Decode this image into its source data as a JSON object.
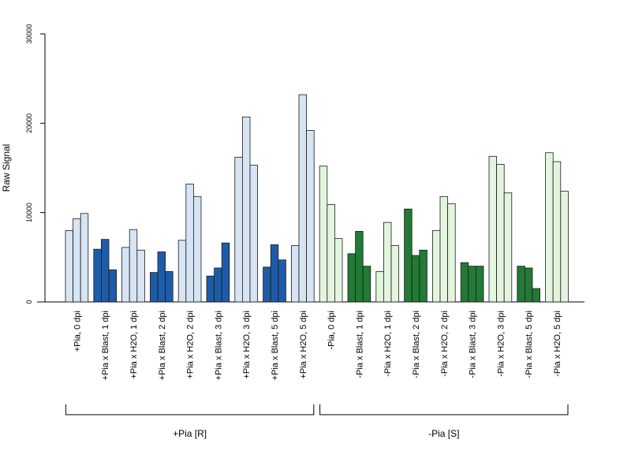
{
  "chart_data": {
    "type": "bar",
    "ylabel": "Raw Signal",
    "ylim": [
      0,
      30000
    ],
    "yticks": [
      "0",
      "10000",
      "20000",
      "30000"
    ],
    "grid": false,
    "legend": "none",
    "colors": {
      "plus_light": "#d6e4f3",
      "plus_dark": "#1f5ca8",
      "minus_light": "#e3f5df",
      "minus_dark": "#227a35"
    },
    "categories": [
      {
        "label": "+Pia, 0 dpi",
        "color": "plus_light",
        "values": [
          8000,
          9300,
          9900
        ]
      },
      {
        "label": "+Pia x Blast, 1 dpi",
        "color": "plus_dark",
        "values": [
          5900,
          7000,
          3600
        ]
      },
      {
        "label": "+Pia x H2O, 1 dpi",
        "color": "plus_light",
        "values": [
          6100,
          8100,
          5800
        ]
      },
      {
        "label": "+Pia x Blast, 2 dpi",
        "color": "plus_dark",
        "values": [
          3300,
          5600,
          3400
        ]
      },
      {
        "label": "+Pia x H2O, 2 dpi",
        "color": "plus_light",
        "values": [
          6900,
          13200,
          11800
        ]
      },
      {
        "label": "+Pia x Blast, 3 dpi",
        "color": "plus_dark",
        "values": [
          2900,
          3800,
          6600
        ]
      },
      {
        "label": "+Pia x H2O, 3 dpi",
        "color": "plus_light",
        "values": [
          16200,
          20700,
          15300
        ]
      },
      {
        "label": "+Pia x Blast, 5 dpi",
        "color": "plus_dark",
        "values": [
          3900,
          6400,
          4700
        ]
      },
      {
        "label": "+Pia x H2O, 5 dpi",
        "color": "plus_light",
        "values": [
          6300,
          23200,
          19200
        ]
      },
      {
        "label": "-Pia, 0 dpi",
        "color": "minus_light",
        "values": [
          15200,
          10900,
          7100
        ]
      },
      {
        "label": "-Pia x Blast, 1 dpi",
        "color": "minus_dark",
        "values": [
          5400,
          7900,
          4000
        ]
      },
      {
        "label": "-Pia x H2O, 1 dpi",
        "color": "minus_light",
        "values": [
          3400,
          8900,
          6300
        ]
      },
      {
        "label": "-Pia x Blast, 2 dpi",
        "color": "minus_dark",
        "values": [
          10400,
          5200,
          5800
        ]
      },
      {
        "label": "-Pia x H2O, 2 dpi",
        "color": "minus_light",
        "values": [
          8000,
          11800,
          11000
        ]
      },
      {
        "label": "-Pia x Blast, 3 dpi",
        "color": "minus_dark",
        "values": [
          4400,
          4000,
          4000
        ]
      },
      {
        "label": "-Pia x H2O, 3 dpi",
        "color": "minus_light",
        "values": [
          16300,
          15400,
          12200
        ]
      },
      {
        "label": "-Pia x Blast, 5 dpi",
        "color": "minus_dark",
        "values": [
          4000,
          3800,
          1500
        ]
      },
      {
        "label": "-Pia x H2O, 5 dpi",
        "color": "minus_light",
        "values": [
          16700,
          15700,
          12400
        ]
      }
    ],
    "groups": [
      {
        "label": "+Pia [R]",
        "categories": [
          0,
          8
        ]
      },
      {
        "label": "-Pia [S]",
        "categories": [
          9,
          17
        ]
      }
    ]
  }
}
